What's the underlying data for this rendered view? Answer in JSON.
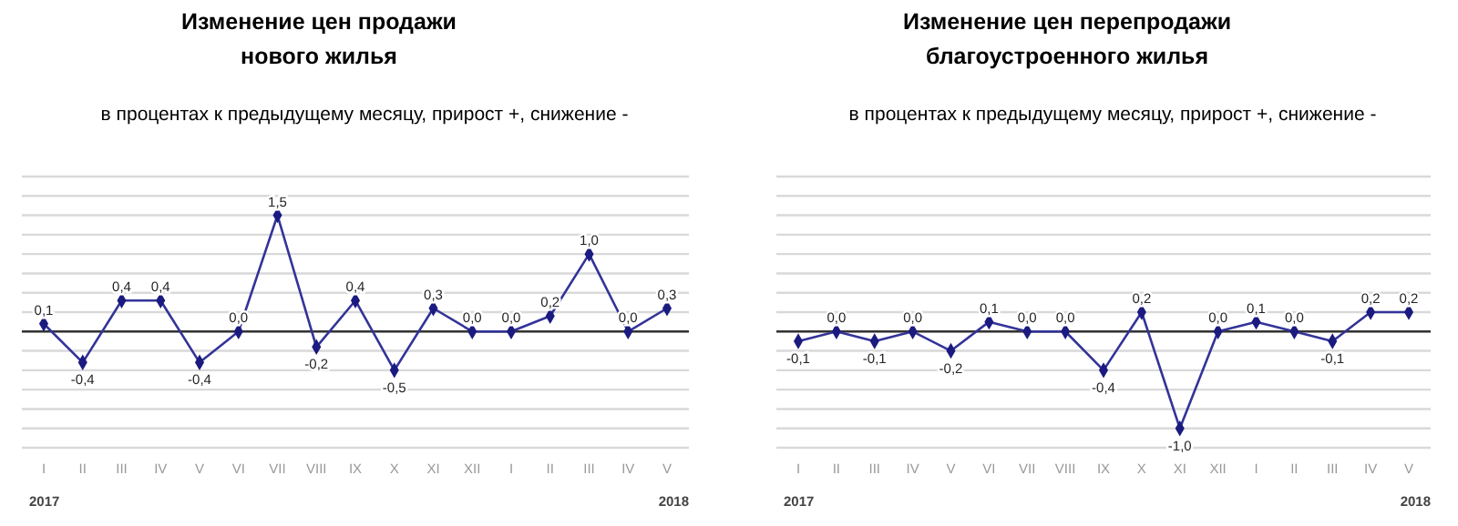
{
  "chart_data": [
    {
      "type": "line",
      "title": "Изменение цен продажи\nнового жилья",
      "subtitle": "в процентах к предыдущему месяцу, прирост +, снижение -",
      "categories": [
        "I",
        "II",
        "III",
        "IV",
        "V",
        "VI",
        "VII",
        "VIII",
        "IX",
        "X",
        "XI",
        "XII",
        "I",
        "II",
        "III",
        "IV",
        "V"
      ],
      "series": [
        {
          "color": "#333399",
          "values": [
            0.1,
            -0.4,
            0.4,
            0.4,
            -0.4,
            0.0,
            1.5,
            -0.2,
            0.4,
            -0.5,
            0.3,
            0.0,
            0.0,
            0.2,
            1.0,
            0.0,
            0.3
          ],
          "value_labels": [
            "0,1",
            "-0,4",
            "0,4",
            "0,4",
            "-0,4",
            "0,0",
            "1,5",
            "-0,2",
            "0,4",
            "-0,5",
            "0,3",
            "0,0",
            "0,0",
            "0,2",
            "1,0",
            "0,0",
            "0,3"
          ]
        }
      ],
      "ylim": [
        -1.5,
        2.0
      ],
      "yticks": [
        {
          "value": -1.5,
          "label": null
        },
        {
          "value": -1.25,
          "label": null
        },
        {
          "value": -1.0,
          "label": null
        },
        {
          "value": -0.75,
          "label": null
        },
        {
          "value": -0.5,
          "label": null
        },
        {
          "value": -0.25,
          "label": null
        },
        {
          "value": 0,
          "label": null
        },
        {
          "value": 0.25,
          "label": null
        },
        {
          "value": 0.5,
          "label": null
        },
        {
          "value": 0.75,
          "label": null
        },
        {
          "value": 1.0,
          "label": null
        },
        {
          "value": 1.25,
          "label": null
        },
        {
          "value": 1.5,
          "label": null
        },
        {
          "value": 1.75,
          "label": null
        },
        {
          "value": 2.0,
          "label": null
        }
      ],
      "grid": "y",
      "marker": "diamond",
      "tick_labels": "x",
      "annotations": [
        "2017",
        "2018"
      ]
    },
    {
      "type": "line",
      "title": "Изменение цен перепродажи\nблагоустроенного жилья",
      "subtitle": "в процентах к предыдущему месяцу, прирост +, снижение -",
      "categories": [
        "I",
        "II",
        "III",
        "IV",
        "V",
        "VI",
        "VII",
        "VIII",
        "IX",
        "X",
        "XI",
        "XII",
        "I",
        "II",
        "III",
        "IV",
        "V"
      ],
      "series": [
        {
          "color": "#333399",
          "values": [
            -0.1,
            0.0,
            -0.1,
            0.0,
            -0.2,
            0.1,
            0.0,
            0.0,
            -0.4,
            0.2,
            -1.0,
            0.0,
            0.1,
            0.0,
            -0.1,
            0.2,
            0.2
          ],
          "value_labels": [
            "-0,1",
            "0,0",
            "-0,1",
            "0,0",
            "-0,2",
            "0,1",
            "0,0",
            "0,0",
            "-0,4",
            "0,2",
            "-1,0",
            "0,0",
            "0,1",
            "0,0",
            "-0,1",
            "0,2",
            "0,2"
          ]
        }
      ],
      "ylim": [
        -1.2,
        1.6
      ],
      "yticks": [
        {
          "value": -1.2,
          "label": null
        },
        {
          "value": -1.0,
          "label": null
        },
        {
          "value": -0.8,
          "label": null
        },
        {
          "value": -0.6,
          "label": null
        },
        {
          "value": -0.4,
          "label": null
        },
        {
          "value": -0.2,
          "label": null
        },
        {
          "value": 0,
          "label": null
        },
        {
          "value": 0.2,
          "label": null
        },
        {
          "value": 0.4,
          "label": null
        },
        {
          "value": 0.6,
          "label": null
        },
        {
          "value": 0.8,
          "label": null
        },
        {
          "value": 1.0,
          "label": null
        },
        {
          "value": 1.2,
          "label": null
        },
        {
          "value": 1.4,
          "label": null
        },
        {
          "value": 1.6,
          "label": null
        }
      ],
      "grid": "y",
      "marker": "diamond",
      "tick_labels": "x",
      "annotations": [
        "2017",
        "2018"
      ]
    }
  ]
}
